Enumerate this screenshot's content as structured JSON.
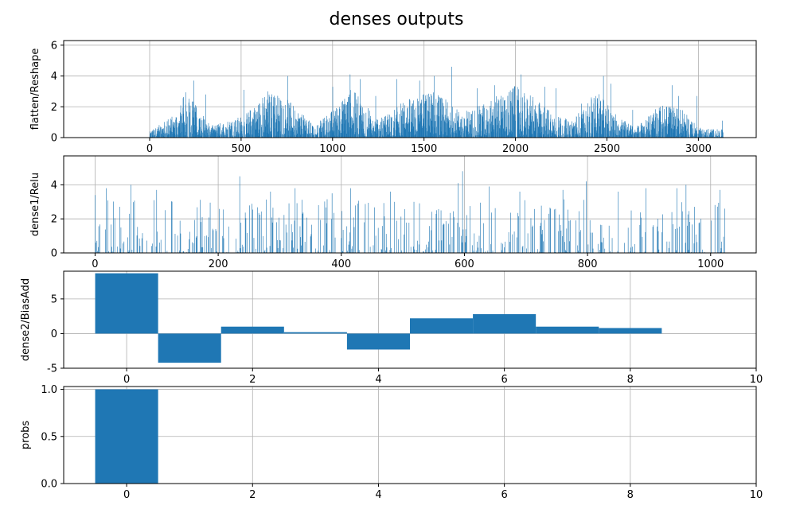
{
  "chart_data": {
    "title": "denses outputs",
    "color": "#1f77b4",
    "grid": true,
    "panels": [
      {
        "type": "bar",
        "ylabel": "flatten/Reshape",
        "xlim": [
          -470,
          3316
        ],
        "ylim": [
          0,
          6.3
        ],
        "xticks": [
          0,
          500,
          1000,
          1500,
          2000,
          2500,
          3000
        ],
        "yticks": [
          0,
          2,
          4,
          6
        ],
        "n_values": 3136,
        "profile": [
          [
            0,
            0.3
          ],
          [
            140,
            1.2
          ],
          [
            200,
            2.4
          ],
          [
            330,
            0.6
          ],
          [
            510,
            1.1
          ],
          [
            650,
            2.4
          ],
          [
            760,
            1.9
          ],
          [
            900,
            0.6
          ],
          [
            1000,
            1.4
          ],
          [
            1100,
            2.5
          ],
          [
            1250,
            0.9
          ],
          [
            1400,
            1.9
          ],
          [
            1550,
            2.4
          ],
          [
            1700,
            1.3
          ],
          [
            1800,
            1.6
          ],
          [
            2000,
            2.6
          ],
          [
            2150,
            1.7
          ],
          [
            2300,
            0.8
          ],
          [
            2450,
            2.4
          ],
          [
            2550,
            1.2
          ],
          [
            2650,
            0.5
          ],
          [
            2800,
            1.7
          ],
          [
            2900,
            1.5
          ],
          [
            3000,
            0.5
          ],
          [
            3136,
            0.4
          ]
        ],
        "peaks": [
          [
            240,
            3.7
          ],
          [
            305,
            2.8
          ],
          [
            515,
            3.1
          ],
          [
            645,
            3.0
          ],
          [
            755,
            4.0
          ],
          [
            1000,
            3.3
          ],
          [
            1095,
            4.1
          ],
          [
            1150,
            3.8
          ],
          [
            1235,
            2.7
          ],
          [
            1350,
            3.8
          ],
          [
            1475,
            3.7
          ],
          [
            1555,
            4.0
          ],
          [
            1650,
            4.6
          ],
          [
            1790,
            3.2
          ],
          [
            1885,
            3.4
          ],
          [
            2030,
            4.1
          ],
          [
            2160,
            3.3
          ],
          [
            2220,
            3.2
          ],
          [
            2360,
            2.2
          ],
          [
            2480,
            4.0
          ],
          [
            2520,
            3.5
          ],
          [
            2640,
            1.8
          ],
          [
            2855,
            3.4
          ],
          [
            2890,
            2.7
          ],
          [
            2990,
            2.7
          ],
          [
            3130,
            1.1
          ]
        ]
      },
      {
        "type": "bar",
        "ylabel": "dense1/Relu",
        "xlim": [
          -51,
          1074
        ],
        "ylim": [
          0,
          5.7
        ],
        "xticks": [
          0,
          200,
          400,
          600,
          800,
          1000
        ],
        "yticks": [
          0,
          2,
          4
        ],
        "n_values": 1024,
        "sparsity": 0.55,
        "peaks": [
          [
            0,
            3.4
          ],
          [
            18,
            3.8
          ],
          [
            58,
            4.0
          ],
          [
            100,
            3.7
          ],
          [
            235,
            4.5
          ],
          [
            285,
            3.6
          ],
          [
            325,
            3.8
          ],
          [
            385,
            3.5
          ],
          [
            415,
            3.8
          ],
          [
            480,
            3.6
          ],
          [
            518,
            3.0
          ],
          [
            590,
            4.1
          ],
          [
            597,
            4.8
          ],
          [
            640,
            3.9
          ],
          [
            690,
            3.6
          ],
          [
            760,
            3.7
          ],
          [
            798,
            4.2
          ],
          [
            850,
            3.6
          ],
          [
            895,
            3.8
          ],
          [
            945,
            3.8
          ],
          [
            960,
            4.0
          ],
          [
            1015,
            3.7
          ],
          [
            1023,
            2.6
          ]
        ]
      },
      {
        "type": "bar",
        "ylabel": "dense2/BiasAdd",
        "xlim": [
          -1,
          10
        ],
        "ylim": [
          -5,
          9
        ],
        "xticks": [
          0,
          2,
          4,
          6,
          8,
          10
        ],
        "yticks": [
          -5,
          0,
          5
        ],
        "categories": [
          0,
          1,
          2,
          3,
          4,
          5,
          6,
          7,
          8
        ],
        "values": [
          8.7,
          -4.2,
          1.0,
          0.2,
          -2.3,
          2.2,
          2.8,
          1.0,
          0.8
        ]
      },
      {
        "type": "bar",
        "ylabel": "probs",
        "xlim": [
          -1,
          10
        ],
        "ylim": [
          0,
          1.03
        ],
        "xticks": [
          0,
          2,
          4,
          6,
          8,
          10
        ],
        "yticks": [
          0.0,
          0.5,
          1.0
        ],
        "yticklabels": [
          "0.0",
          "0.5",
          "1.0"
        ],
        "categories": [
          0,
          1,
          2,
          3,
          4,
          5,
          6,
          7,
          8
        ],
        "values": [
          1.0,
          0,
          0,
          0,
          0,
          0,
          0,
          0,
          0
        ]
      }
    ]
  }
}
